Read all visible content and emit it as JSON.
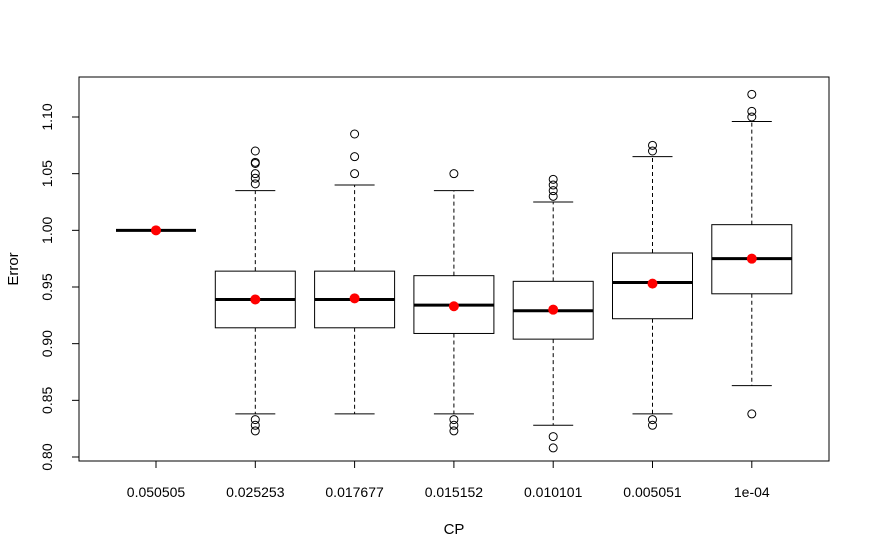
{
  "chart_data": {
    "type": "boxplot",
    "xlabel": "CP",
    "ylabel": "Error",
    "ylim": [
      0.795,
      1.135
    ],
    "yticks": [
      0.8,
      0.85,
      0.9,
      0.95,
      1.0,
      1.05,
      1.1
    ],
    "ytick_labels": [
      "0.80",
      "0.85",
      "0.90",
      "0.95",
      "1.00",
      "1.05",
      "1.10"
    ],
    "categories": [
      "0.050505",
      "0.025253",
      "0.017677",
      "0.015152",
      "0.010101",
      "0.005051",
      "1e-04"
    ],
    "mean_marker_color": "#ff0000",
    "boxes": [
      {
        "category": "0.050505",
        "whisker_low": 1.0,
        "q1": 1.0,
        "median": 1.0,
        "q3": 1.0,
        "whisker_high": 1.0,
        "mean": 1.0,
        "outliers": []
      },
      {
        "category": "0.025253",
        "whisker_low": 0.838,
        "q1": 0.914,
        "median": 0.939,
        "q3": 0.964,
        "whisker_high": 1.035,
        "mean": 0.939,
        "outliers": [
          0.823,
          0.828,
          0.833,
          1.041,
          1.046,
          1.05,
          1.059,
          1.06,
          1.07
        ]
      },
      {
        "category": "0.017677",
        "whisker_low": 0.838,
        "q1": 0.914,
        "median": 0.939,
        "q3": 0.964,
        "whisker_high": 1.04,
        "mean": 0.94,
        "outliers": [
          1.05,
          1.065,
          1.085
        ]
      },
      {
        "category": "0.015152",
        "whisker_low": 0.838,
        "q1": 0.909,
        "median": 0.934,
        "q3": 0.96,
        "whisker_high": 1.035,
        "mean": 0.933,
        "outliers": [
          0.823,
          0.828,
          0.833,
          1.05
        ]
      },
      {
        "category": "0.010101",
        "whisker_low": 0.828,
        "q1": 0.904,
        "median": 0.929,
        "q3": 0.955,
        "whisker_high": 1.025,
        "mean": 0.93,
        "outliers": [
          0.808,
          0.818,
          1.03,
          1.035,
          1.04,
          1.045
        ]
      },
      {
        "category": "0.005051",
        "whisker_low": 0.838,
        "q1": 0.922,
        "median": 0.954,
        "q3": 0.98,
        "whisker_high": 1.065,
        "mean": 0.953,
        "outliers": [
          0.828,
          0.833,
          1.07,
          1.075
        ]
      },
      {
        "category": "1e-04",
        "whisker_low": 0.863,
        "q1": 0.944,
        "median": 0.975,
        "q3": 1.005,
        "whisker_high": 1.096,
        "mean": 0.975,
        "outliers": [
          0.838,
          1.1,
          1.105,
          1.12
        ]
      }
    ]
  }
}
